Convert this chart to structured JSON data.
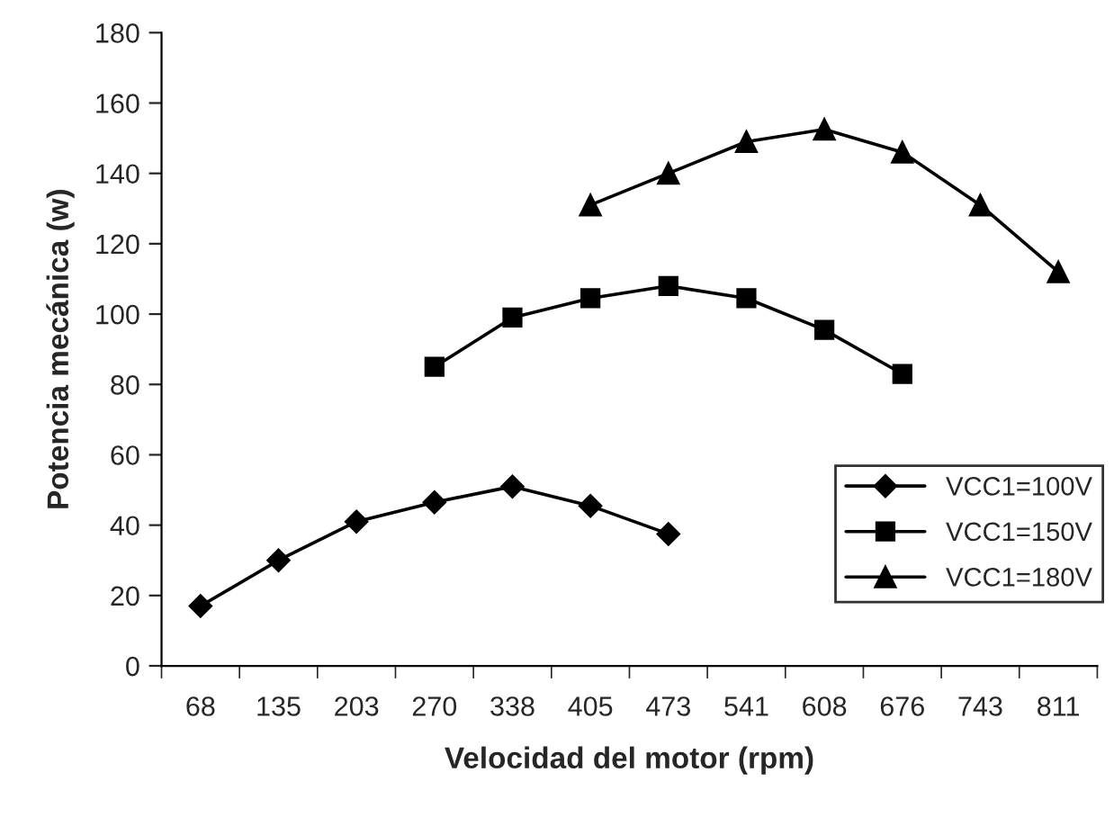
{
  "chart_data": {
    "type": "line",
    "xlabel": "Velocidad del motor (rpm)",
    "ylabel": "Potencia mecánica (w)",
    "categories": [
      "68",
      "135",
      "203",
      "270",
      "338",
      "405",
      "473",
      "541",
      "608",
      "676",
      "743",
      "811"
    ],
    "ylim": [
      0,
      180
    ],
    "yticks": [
      0,
      20,
      40,
      60,
      80,
      100,
      120,
      140,
      160,
      180
    ],
    "grid": false,
    "legend": "right",
    "line_style": "solid",
    "series": [
      {
        "name": "VCC1=100V",
        "color": "#000000",
        "marker": "diamond",
        "values": [
          17,
          30,
          41,
          46.5,
          51,
          45.5,
          37.5,
          null,
          null,
          null,
          null,
          null
        ]
      },
      {
        "name": "VCC1=150V",
        "color": "#000000",
        "marker": "square",
        "values": [
          null,
          null,
          null,
          85,
          99,
          104.5,
          108,
          104.5,
          95.5,
          83,
          null,
          null
        ]
      },
      {
        "name": "VCC1=180V",
        "color": "#000000",
        "marker": "triangle",
        "values": [
          null,
          null,
          null,
          null,
          null,
          131,
          140,
          149,
          152.5,
          146,
          131,
          112
        ]
      }
    ]
  }
}
